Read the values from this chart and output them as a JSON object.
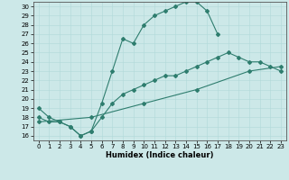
{
  "xlabel": "Humidex (Indice chaleur)",
  "ylabel": "",
  "background_color": "#cce8e8",
  "line_color": "#2e7d6e",
  "xlim": [
    -0.5,
    23.5
  ],
  "ylim": [
    15.5,
    30.5
  ],
  "xticks": [
    0,
    1,
    2,
    3,
    4,
    5,
    6,
    7,
    8,
    9,
    10,
    11,
    12,
    13,
    14,
    15,
    16,
    17,
    18,
    19,
    20,
    21,
    22,
    23
  ],
  "yticks": [
    16,
    17,
    18,
    19,
    20,
    21,
    22,
    23,
    24,
    25,
    26,
    27,
    28,
    29,
    30
  ],
  "line1_x": [
    0,
    1,
    2,
    3,
    4,
    5,
    6,
    7,
    8,
    9,
    10,
    11,
    12,
    13,
    14,
    15,
    16,
    17
  ],
  "line1_y": [
    19.0,
    18.0,
    17.5,
    17.0,
    16.0,
    16.5,
    19.5,
    23.0,
    26.5,
    26.0,
    28.0,
    29.0,
    29.5,
    30.0,
    30.5,
    30.5,
    29.5,
    27.0
  ],
  "line2_x": [
    0,
    1,
    2,
    3,
    4,
    5,
    6,
    7,
    8,
    9,
    10,
    11,
    12,
    13,
    14,
    15,
    16,
    17,
    18,
    19,
    20,
    21,
    22,
    23
  ],
  "line2_y": [
    18.0,
    17.5,
    17.5,
    17.0,
    16.0,
    16.5,
    18.0,
    19.5,
    20.5,
    21.0,
    21.5,
    22.0,
    22.5,
    22.5,
    23.0,
    23.5,
    24.0,
    24.5,
    25.0,
    24.5,
    24.0,
    24.0,
    23.5,
    23.0
  ],
  "line3_x": [
    0,
    5,
    10,
    15,
    20,
    23
  ],
  "line3_y": [
    17.5,
    18.0,
    19.5,
    21.0,
    23.0,
    23.5
  ],
  "figsize": [
    3.2,
    2.0
  ],
  "dpi": 100,
  "tick_fontsize": 5.0,
  "xlabel_fontsize": 6.0
}
